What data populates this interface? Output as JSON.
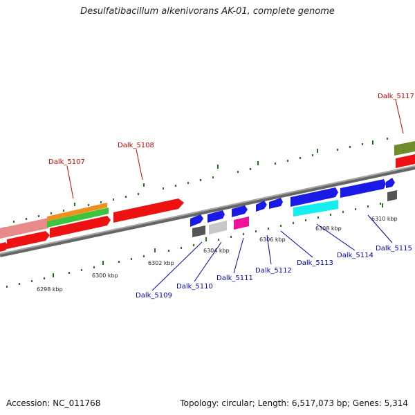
{
  "title": "Desulfatibacillum alkenivorans AK-01, complete genome",
  "footer": {
    "accession": "Accession: NC_011768",
    "summary": "Topology: circular; Length: 6,517,073 bp; Genes: 5,314"
  },
  "colors": {
    "upper_label": "#cc0000",
    "lower_label": "#0000bb",
    "backbone": "#888888",
    "tick_major": "#1a7a1a"
  },
  "scale_labels": [
    "6298 kbp",
    "6300 kbp",
    "6302 kbp",
    "6304 kbp",
    "6306 kbp",
    "6308 kbp",
    "6310 kbp"
  ],
  "gene_labels_upper": [
    "Dalk_5107",
    "Dalk_5108",
    "Dalk_5117"
  ],
  "gene_labels_lower": [
    "Dalk_5109",
    "Dalk_5110",
    "Dalk_5111",
    "Dalk_5112",
    "Dalk_5113",
    "Dalk_5114",
    "Dalk_5115"
  ]
}
